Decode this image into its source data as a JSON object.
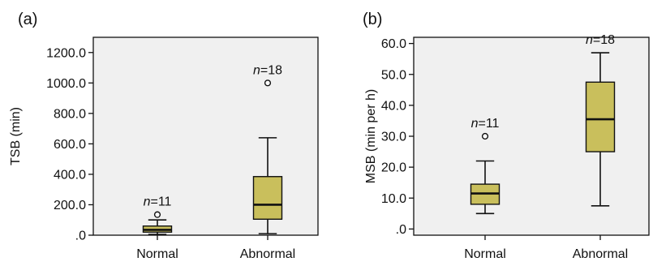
{
  "colors": {
    "box_fill": "#c9bf5c",
    "plot_bg": "#f0f0f0",
    "stroke": "#111111"
  },
  "chart_data": [
    {
      "type": "box",
      "panel_label": "(a)",
      "ylabel": "TSB (min)",
      "ylim": [
        0,
        1300
      ],
      "yticks": [
        0,
        200,
        400,
        600,
        800,
        1000,
        1200
      ],
      "ytick_labels": [
        ".0",
        "200.0",
        "400.0",
        "600.0",
        "800.0",
        "1000.0",
        "1200.0"
      ],
      "grid": false,
      "categories": [
        "Normal",
        "Abnormal"
      ],
      "boxes": [
        {
          "category": "Normal",
          "whisker_low": 5,
          "q1": 20,
          "median": 35,
          "q3": 60,
          "whisker_high": 100,
          "outliers": [
            135
          ],
          "n_label": "n=11"
        },
        {
          "category": "Abnormal",
          "whisker_low": 10,
          "q1": 105,
          "median": 200,
          "q3": 385,
          "whisker_high": 640,
          "outliers": [
            1000
          ],
          "n_label": "n=18"
        }
      ]
    },
    {
      "type": "box",
      "panel_label": "(b)",
      "ylabel": "MSB (min per h)",
      "ylim": [
        -2,
        62
      ],
      "yticks": [
        0,
        10,
        20,
        30,
        40,
        50,
        60
      ],
      "ytick_labels": [
        ".0",
        "10.0",
        "20.0",
        "30.0",
        "40.0",
        "50.0",
        "60.0"
      ],
      "grid": false,
      "categories": [
        "Normal",
        "Abnormal"
      ],
      "boxes": [
        {
          "category": "Normal",
          "whisker_low": 5,
          "q1": 8,
          "median": 11.5,
          "q3": 14.5,
          "whisker_high": 22,
          "outliers": [
            30
          ],
          "n_label": "n=11"
        },
        {
          "category": "Abnormal",
          "whisker_low": 7.5,
          "q1": 25,
          "median": 35.5,
          "q3": 47.5,
          "whisker_high": 57,
          "outliers": [],
          "n_label": "n=18"
        }
      ]
    }
  ]
}
